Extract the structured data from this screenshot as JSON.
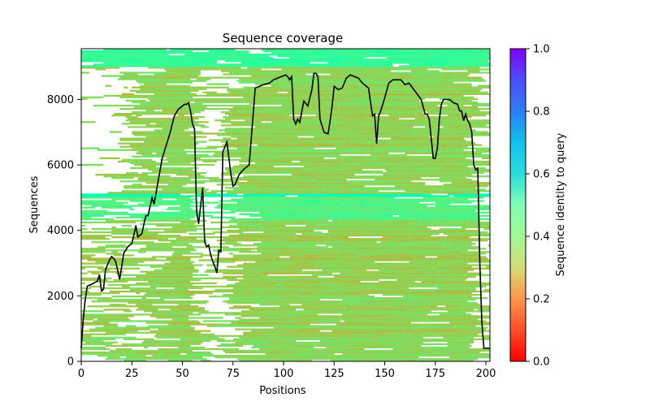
{
  "chart_data": {
    "type": "heatmap",
    "title": "Sequence coverage",
    "xlabel": "Positions",
    "ylabel": "Sequences",
    "xlim": [
      0,
      202
    ],
    "ylim": [
      0,
      9550
    ],
    "x_ticks": [
      0,
      25,
      50,
      75,
      100,
      125,
      150,
      175,
      200
    ],
    "y_ticks": [
      0,
      2000,
      4000,
      6000,
      8000
    ],
    "grid": false,
    "colorbar": {
      "label": "Sequence identity to query",
      "range": [
        0,
        1
      ],
      "ticks": [
        0.0,
        0.2,
        0.4,
        0.6,
        0.8,
        1.0
      ],
      "colormap": "rainbow_r"
    },
    "coverage_line": {
      "color": "#000000",
      "x": [
        0,
        1,
        2,
        3,
        5,
        8,
        9,
        10,
        11,
        12,
        14,
        15,
        16,
        17,
        19,
        21,
        23,
        25,
        26,
        27,
        28,
        29,
        30,
        31,
        32,
        33,
        35,
        36,
        38,
        40,
        42,
        44,
        46,
        48,
        50,
        51,
        52,
        53,
        54,
        55,
        56,
        57,
        58,
        60,
        61,
        62,
        63,
        64,
        65,
        66,
        67,
        68,
        69,
        70,
        72,
        74,
        75,
        76,
        78,
        80,
        83,
        86,
        90,
        93,
        95,
        97,
        99,
        101,
        102,
        103,
        104,
        105,
        106,
        107,
        108,
        110,
        112,
        114,
        115,
        116,
        117,
        118,
        120,
        122,
        123,
        124,
        125,
        127,
        129,
        131,
        133,
        135,
        137,
        139,
        141,
        142,
        143,
        144,
        145,
        146,
        147,
        148,
        150,
        152,
        154,
        156,
        158,
        160,
        162,
        165,
        168,
        170,
        171,
        172,
        174,
        175,
        176,
        177,
        178,
        179,
        180,
        181,
        182,
        184,
        186,
        187,
        188,
        189,
        190,
        191,
        192,
        193,
        194,
        195,
        196,
        197,
        198,
        199,
        200,
        201,
        202
      ],
      "y": [
        400,
        1300,
        1900,
        2300,
        2350,
        2450,
        2650,
        2150,
        2200,
        2800,
        3100,
        3200,
        3150,
        3050,
        2500,
        3300,
        3500,
        3600,
        3850,
        4150,
        3800,
        3850,
        3900,
        4200,
        4450,
        4450,
        5000,
        4800,
        5500,
        6200,
        6600,
        7000,
        7500,
        7700,
        7800,
        7850,
        7850,
        7900,
        7650,
        7250,
        7100,
        4600,
        4200,
        5300,
        3650,
        3500,
        3550,
        3250,
        3050,
        2900,
        2700,
        3400,
        3350,
        6400,
        6700,
        5700,
        5350,
        5400,
        5700,
        5850,
        6000,
        8350,
        8450,
        8500,
        8600,
        8650,
        8700,
        8750,
        8700,
        8600,
        8700,
        7400,
        7250,
        7400,
        7300,
        7950,
        7800,
        8300,
        8800,
        8800,
        8700,
        7400,
        7000,
        6950,
        7350,
        7800,
        8400,
        8300,
        8350,
        8650,
        8750,
        8700,
        8650,
        8500,
        8400,
        8350,
        7900,
        7500,
        7550,
        6650,
        7500,
        7650,
        8050,
        8500,
        8600,
        8600,
        8600,
        8450,
        8500,
        8250,
        8000,
        7550,
        7550,
        7400,
        6200,
        6200,
        6500,
        7400,
        7850,
        8000,
        8000,
        8000,
        8000,
        7900,
        7850,
        7650,
        7650,
        7350,
        7550,
        7350,
        7250,
        7000,
        6000,
        5850,
        5900,
        3000,
        1200,
        400,
        400,
        400,
        400
      ]
    }
  }
}
